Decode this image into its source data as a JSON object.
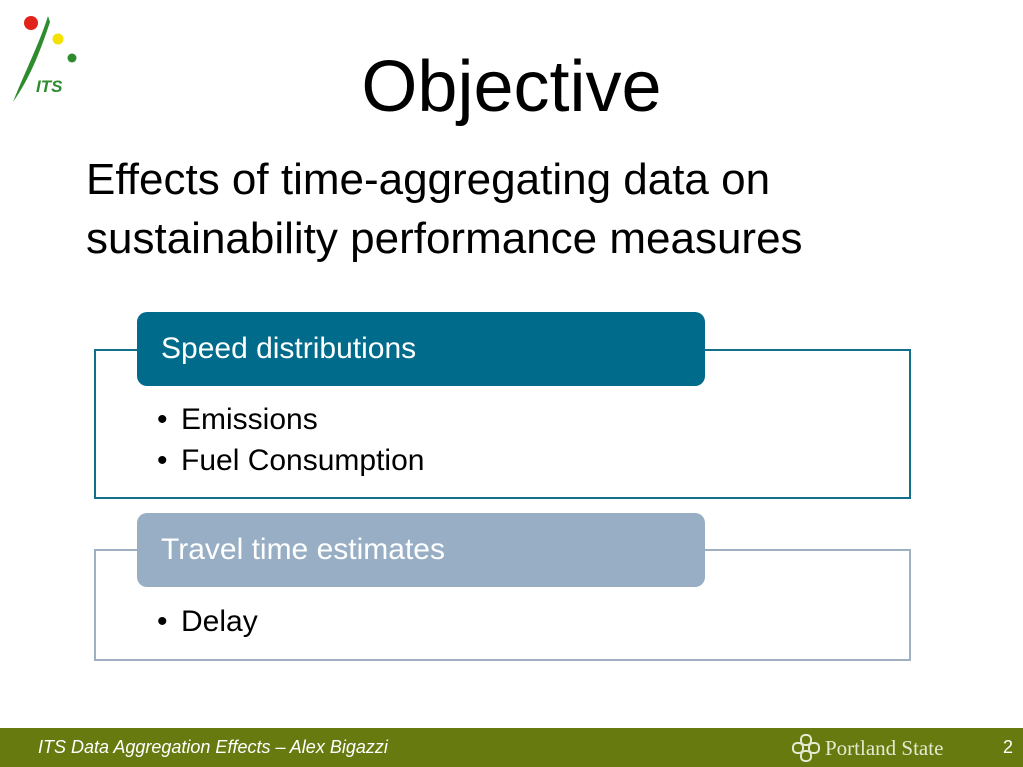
{
  "logo": {
    "text": "ITS",
    "colors": {
      "red": "#e2231a",
      "yellow": "#f5e100",
      "green": "#2e8b2e"
    }
  },
  "title": "Objective",
  "subtitle": {
    "line1": "Effects of time-aggregating data on",
    "line2": "sustainability performance measures"
  },
  "sections": [
    {
      "header": "Speed distributions",
      "color": "#006b8a",
      "bullets": [
        "Emissions",
        "Fuel Consumption"
      ]
    },
    {
      "header": "Travel time estimates",
      "color": "#97aec4",
      "bullets": [
        "Delay"
      ]
    }
  ],
  "bullet_symbol": "•",
  "footer": {
    "text": "ITS Data Aggregation Effects – Alex Bigazzi",
    "university": "Portland State",
    "page_number": "2",
    "background": "#667a10"
  }
}
